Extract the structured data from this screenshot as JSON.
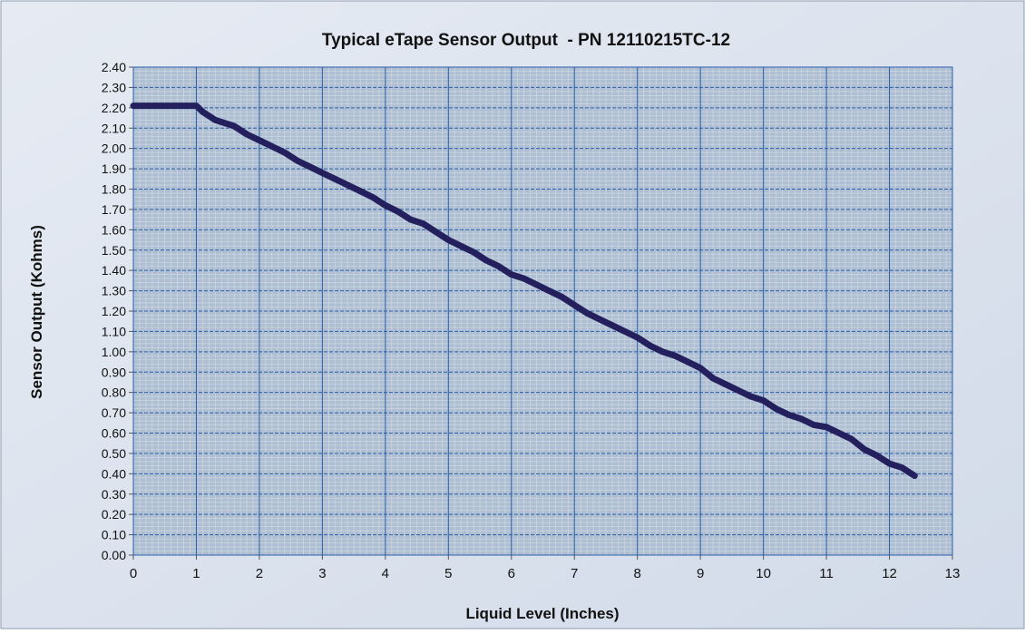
{
  "chart_data": {
    "type": "line",
    "title": "Typical eTape Sensor Output  - PN 12110215TC-12",
    "xlabel": "Liquid Level (Inches)",
    "ylabel": "Sensor Output (Kohms)",
    "xlim": [
      0,
      13
    ],
    "ylim": [
      0,
      2.4
    ],
    "x_ticks": [
      "0",
      "1",
      "2",
      "3",
      "4",
      "5",
      "6",
      "7",
      "8",
      "9",
      "10",
      "11",
      "12",
      "13"
    ],
    "y_ticks": [
      "0.00",
      "0.10",
      "0.20",
      "0.30",
      "0.40",
      "0.50",
      "0.60",
      "0.70",
      "0.80",
      "0.90",
      "1.00",
      "1.10",
      "1.20",
      "1.30",
      "1.40",
      "1.50",
      "1.60",
      "1.70",
      "1.80",
      "1.90",
      "2.00",
      "2.10",
      "2.20",
      "2.30",
      "2.40"
    ],
    "grid": true,
    "legend": "none",
    "series": [
      {
        "color": "#24205e",
        "x": [
          0,
          1.0,
          1.1,
          1.3,
          1.6,
          1.8,
          2.0,
          2.2,
          2.4,
          2.6,
          2.8,
          3.0,
          3.2,
          3.4,
          3.6,
          3.8,
          4.0,
          4.2,
          4.4,
          4.6,
          4.8,
          5.0,
          5.2,
          5.4,
          5.6,
          5.8,
          6.0,
          6.2,
          6.4,
          6.6,
          6.8,
          7.0,
          7.2,
          7.4,
          7.6,
          7.8,
          8.0,
          8.2,
          8.4,
          8.6,
          8.8,
          9.0,
          9.2,
          9.4,
          9.6,
          9.8,
          10.0,
          10.2,
          10.4,
          10.6,
          10.8,
          11.0,
          11.2,
          11.4,
          11.6,
          11.8,
          12.0,
          12.2,
          12.4
        ],
        "y": [
          2.21,
          2.21,
          2.18,
          2.14,
          2.11,
          2.07,
          2.04,
          2.01,
          1.98,
          1.94,
          1.91,
          1.88,
          1.85,
          1.82,
          1.79,
          1.76,
          1.72,
          1.69,
          1.65,
          1.63,
          1.59,
          1.55,
          1.52,
          1.49,
          1.45,
          1.42,
          1.38,
          1.36,
          1.33,
          1.3,
          1.27,
          1.23,
          1.19,
          1.16,
          1.13,
          1.1,
          1.07,
          1.03,
          1.0,
          0.98,
          0.95,
          0.92,
          0.87,
          0.84,
          0.81,
          0.78,
          0.76,
          0.72,
          0.69,
          0.67,
          0.64,
          0.63,
          0.6,
          0.57,
          0.52,
          0.49,
          0.45,
          0.43,
          0.39
        ]
      }
    ]
  },
  "colors": {
    "frame_bg": "#dce3ef",
    "plot_bg": "#aebfd3",
    "major_grid": "#2c5fa8",
    "minor_grid": "#d0d8e2",
    "line": "#24205e"
  }
}
